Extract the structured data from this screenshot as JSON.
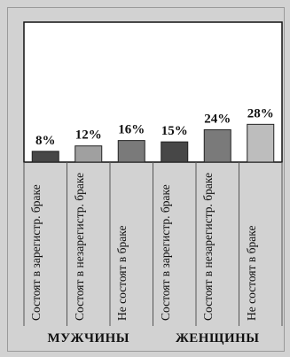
{
  "chart_data": {
    "type": "bar",
    "categories": [
      "Состоят в зарегистр. браке",
      "Состоят в незарегистр. браке",
      "Не состоят в браке",
      "Состоят в зарегистр. браке",
      "Состоят в незарегистр. браке",
      "Не состоят в браке"
    ],
    "groups": [
      "МУЖЧИНЫ",
      "ЖЕНЩИНЫ"
    ],
    "values": [
      8,
      12,
      16,
      15,
      24,
      28
    ],
    "value_labels": [
      "8%",
      "12%",
      "16%",
      "15%",
      "24%",
      "28%"
    ],
    "colors": [
      "#474747",
      "#a0a0a0",
      "#7a7a7a",
      "#474747",
      "#7a7a7a",
      "#bdbdbd"
    ]
  }
}
